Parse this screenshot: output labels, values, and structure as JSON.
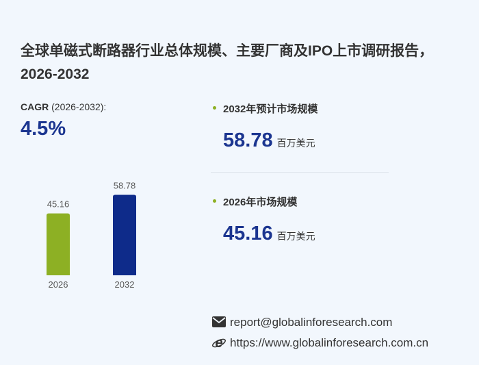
{
  "header": {
    "title": "全球单磁式断路器行业总体规模、主要厂商及IPO上市调研报告，2026-2032"
  },
  "cagr": {
    "label": "CAGR",
    "period": "(2026-2032):",
    "value": "4.5%"
  },
  "chart_data": {
    "type": "bar",
    "categories": [
      "2026",
      "2032"
    ],
    "values": [
      45.16,
      58.78
    ],
    "colors": [
      "#8db024",
      "#0e2b8a"
    ]
  },
  "stats": [
    {
      "label": "2032年预计市场规模",
      "value": 58.78,
      "unit": "百万美元"
    },
    {
      "label": "2026年市场规模",
      "value": 45.16,
      "unit": "百万美元"
    }
  ],
  "contact": {
    "email": "report@globalinforesearch.com",
    "url": "https://www.globalinforesearch.com.cn"
  }
}
